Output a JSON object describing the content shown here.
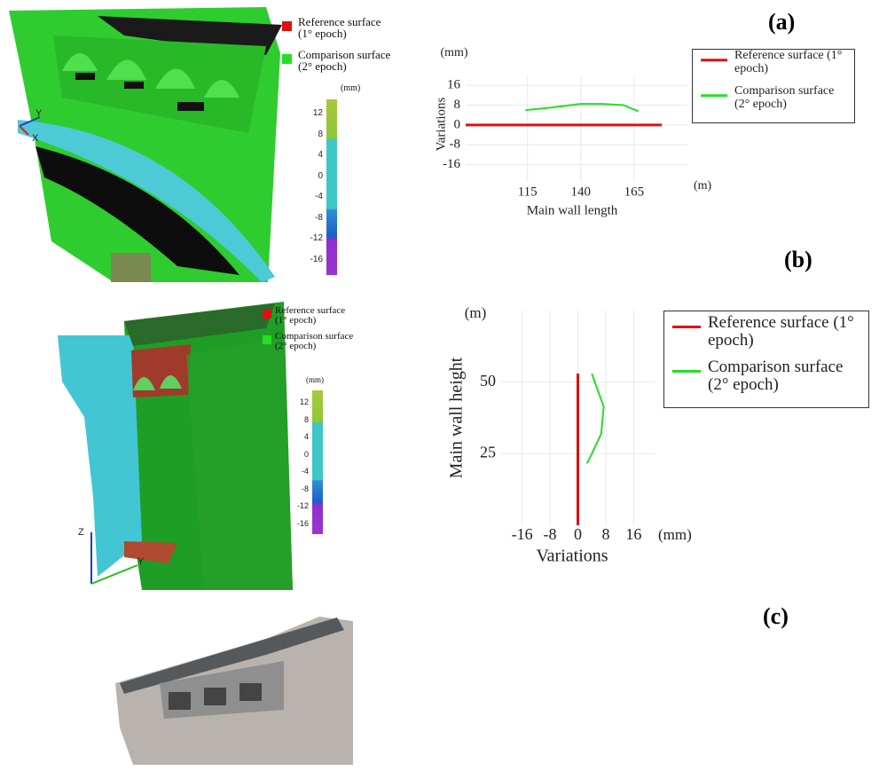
{
  "panel_labels": [
    "(a)",
    "(b)",
    "(c)"
  ],
  "views": [
    {
      "legend": [
        "Reference surface (1° epoch)",
        "Comparison surface (2° epoch)"
      ],
      "colorbar": {
        "unit": "(mm)",
        "ticks": [
          "12",
          "8",
          "4",
          "0",
          "-4",
          "-8",
          "-12",
          "-16"
        ]
      },
      "axes": [
        "Y",
        "X"
      ]
    },
    {
      "legend": [
        "Reference surface (1° epoch)",
        "Comparison surface (2° epoch)"
      ],
      "colorbar": {
        "unit": "(mm)",
        "ticks": [
          "12",
          "8",
          "4",
          "0",
          "-4",
          "-8",
          "-12",
          "-16"
        ]
      },
      "axes": [
        "Z",
        "Y"
      ]
    }
  ],
  "chart_data": [
    {
      "type": "line",
      "x_label": "Main wall length",
      "y_label": "Variations",
      "x_unit": "(m)",
      "y_unit": "(mm)",
      "xlim": [
        86,
        190
      ],
      "ylim": [
        -23,
        20
      ],
      "xticks": [
        115,
        140,
        165
      ],
      "yticks": [
        16,
        8,
        0,
        -8,
        -16
      ],
      "grid": true,
      "series": [
        {
          "name": "Reference surface (1° epoch)",
          "color": "#e01010",
          "x": [
            86,
            178
          ],
          "y": [
            0,
            0
          ]
        },
        {
          "name": "Comparison surface (2° epoch)",
          "color": "#22e022",
          "x": [
            114,
            126,
            140,
            150,
            160,
            167
          ],
          "y": [
            6,
            7,
            8.5,
            8.5,
            8,
            5.5
          ]
        }
      ]
    },
    {
      "type": "line",
      "x_label": "Variations",
      "y_label": "Main wall height",
      "x_unit": "(mm)",
      "y_unit": "(m)",
      "xlim": [
        -22,
        22
      ],
      "ylim": [
        0,
        75
      ],
      "xticks": [
        -16,
        -8,
        0,
        8,
        16
      ],
      "yticks": [
        50,
        25
      ],
      "grid": true,
      "series": [
        {
          "name": "Reference surface (1° epoch)",
          "color": "#e01010",
          "x": [
            0,
            0
          ],
          "y": [
            0,
            53
          ]
        },
        {
          "name": "Comparison surface (2° epoch)",
          "color": "#22e022",
          "x": [
            4,
            7.4,
            6.7,
            4,
            2.6
          ],
          "y": [
            53,
            41.4,
            32,
            25,
            21.6
          ]
        }
      ]
    }
  ]
}
